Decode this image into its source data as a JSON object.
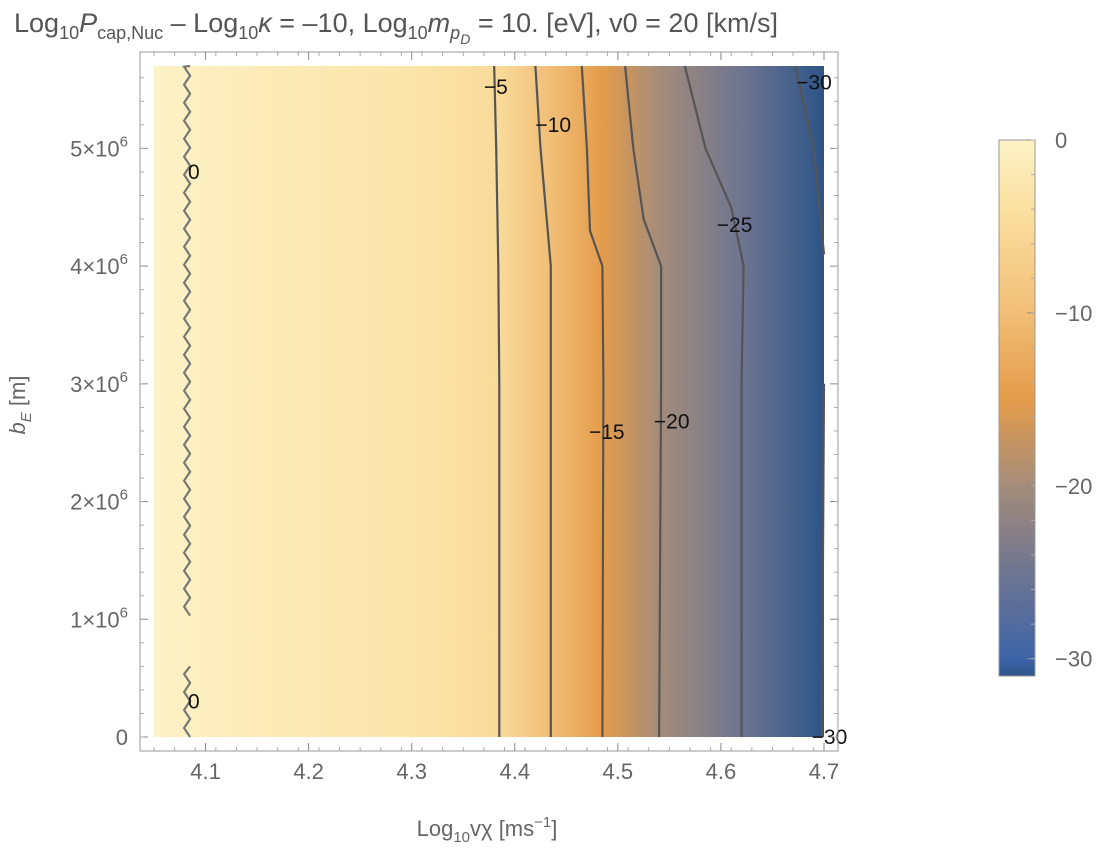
{
  "chart_data": {
    "type": "heatmap",
    "title": {
      "prefix": "Log",
      "sub1": "10",
      "P": "P",
      "psub": "cap,Nuc",
      "mid": " – Log",
      "sub2": "10",
      "kappa": "κ",
      "mid2": " = –10, Log",
      "sub3": "10",
      "m": "m",
      "msub": "p",
      "msubsub": "D",
      "suffix": " = 10. [eV], v0 = 20 [km/s]"
    },
    "xlabel": {
      "prefix": "Log",
      "sub": "10",
      "main": "vχ [ms",
      "sup": "−1",
      "suffix": "]"
    },
    "ylabel": {
      "main": "b",
      "sub": "E",
      "suffix": " [m]"
    },
    "xlim": [
      4.05,
      4.7
    ],
    "ylim": [
      0,
      5700000
    ],
    "x_ticks": [
      {
        "value": 4.1,
        "label": "4.1"
      },
      {
        "value": 4.2,
        "label": "4.2"
      },
      {
        "value": 4.3,
        "label": "4.3"
      },
      {
        "value": 4.4,
        "label": "4.4"
      },
      {
        "value": 4.5,
        "label": "4.5"
      },
      {
        "value": 4.6,
        "label": "4.6"
      },
      {
        "value": 4.7,
        "label": "4.7"
      }
    ],
    "y_ticks": [
      {
        "value": 0,
        "mant": "0",
        "exp": ""
      },
      {
        "value": 1000000,
        "mant": "1×10",
        "exp": "6"
      },
      {
        "value": 2000000,
        "mant": "2×10",
        "exp": "6"
      },
      {
        "value": 3000000,
        "mant": "3×10",
        "exp": "6"
      },
      {
        "value": 4000000,
        "mant": "4×10",
        "exp": "6"
      },
      {
        "value": 5000000,
        "mant": "5×10",
        "exp": "6"
      }
    ],
    "colorbar": {
      "range": [
        -31,
        0
      ],
      "ticks": [
        {
          "value": 0,
          "label": "0"
        },
        {
          "value": -10,
          "label": "−10"
        },
        {
          "value": -20,
          "label": "−20"
        },
        {
          "value": -30,
          "label": "−30"
        }
      ],
      "stops": [
        {
          "value": 0,
          "color": "#fdf2c6"
        },
        {
          "value": -4,
          "color": "#fbe0a0"
        },
        {
          "value": -10,
          "color": "#f1be77"
        },
        {
          "value": -15,
          "color": "#e49c4a"
        },
        {
          "value": -20,
          "color": "#a58c7a"
        },
        {
          "value": -25,
          "color": "#6e7591"
        },
        {
          "value": -30,
          "color": "#3e65a8"
        },
        {
          "value": -31,
          "color": "#2d5488"
        }
      ]
    },
    "field_x": [
      4.05,
      4.15,
      4.3,
      4.385,
      4.435,
      4.485,
      4.54,
      4.62,
      4.7
    ],
    "field_values": [
      0,
      -1.5,
      -3,
      -5,
      -10,
      -15,
      -20,
      -25,
      -31
    ],
    "contours": [
      {
        "level": -5,
        "points": [
          [
            4.385,
            0
          ],
          [
            4.385,
            3000000
          ],
          [
            4.384,
            4000000
          ],
          [
            4.382,
            5000000
          ],
          [
            4.38,
            5700000
          ]
        ]
      },
      {
        "level": -10,
        "points": [
          [
            4.435,
            0
          ],
          [
            4.435,
            3000000
          ],
          [
            4.435,
            4000000
          ],
          [
            4.425,
            5000000
          ],
          [
            4.42,
            5700000
          ]
        ]
      },
      {
        "level": -15,
        "points": [
          [
            4.485,
            0
          ],
          [
            4.486,
            3000000
          ],
          [
            4.485,
            4000000
          ],
          [
            4.473,
            4300000
          ],
          [
            4.47,
            5000000
          ],
          [
            4.465,
            5700000
          ]
        ]
      },
      {
        "level": -20,
        "points": [
          [
            4.54,
            0
          ],
          [
            4.542,
            3000000
          ],
          [
            4.542,
            4000000
          ],
          [
            4.525,
            4400000
          ],
          [
            4.515,
            5000000
          ],
          [
            4.507,
            5700000
          ]
        ]
      },
      {
        "level": -25,
        "points": [
          [
            4.62,
            0
          ],
          [
            4.62,
            3000000
          ],
          [
            4.622,
            4000000
          ],
          [
            4.61,
            4500000
          ],
          [
            4.585,
            5000000
          ],
          [
            4.565,
            5700000
          ]
        ]
      },
      {
        "level": -30,
        "points": [
          [
            4.698,
            0
          ],
          [
            4.7,
            3000000
          ]
        ]
      },
      {
        "level": -30,
        "points": [
          [
            4.7,
            4100000
          ],
          [
            4.69,
            5000000
          ],
          [
            4.672,
            5700000
          ]
        ]
      }
    ],
    "zero_contours": [
      {
        "x": 4.085,
        "y_from": 1030000,
        "y_to": 5700000
      },
      {
        "x": 4.085,
        "y_from": 0,
        "y_to": 600000
      }
    ],
    "contour_labels": [
      {
        "text": "−5",
        "x": 4.37,
        "y": 5520000
      },
      {
        "text": "−10",
        "x": 4.42,
        "y": 5200000
      },
      {
        "text": "−15",
        "x": 4.472,
        "y": 2590000
      },
      {
        "text": "−20",
        "x": 4.535,
        "y": 2680000
      },
      {
        "text": "−25",
        "x": 4.596,
        "y": 4350000
      },
      {
        "text": "−30",
        "x": 4.673,
        "y": 5560000
      },
      {
        "text": "−30",
        "x": 4.688,
        "y": 0
      },
      {
        "text": "0",
        "x": 4.083,
        "y": 4800000
      },
      {
        "text": "0",
        "x": 4.083,
        "y": 300000
      }
    ]
  }
}
